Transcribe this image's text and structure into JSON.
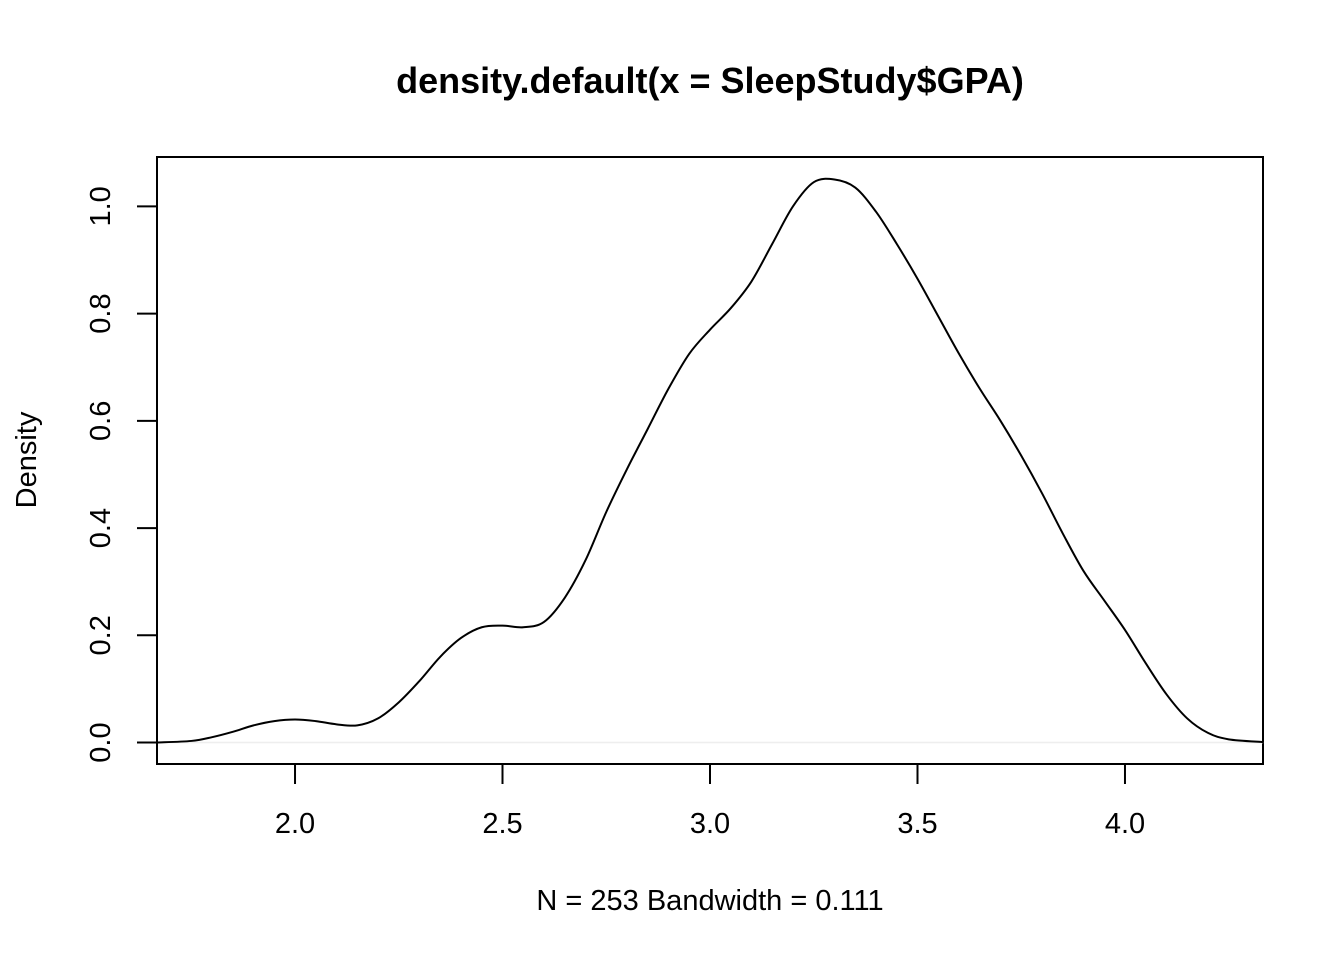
{
  "chart_data": {
    "type": "line",
    "title": "density.default(x = SleepStudy$GPA)",
    "xlabel": "N = 253   Bandwidth = 0.111",
    "ylabel": "Density",
    "xlim": [
      1.6674,
      4.3326
    ],
    "ylim": [
      -0.04,
      1.092
    ],
    "xticks": [
      2.0,
      2.5,
      3.0,
      3.5,
      4.0
    ],
    "xtick_labels": [
      "2.0",
      "2.5",
      "3.0",
      "3.5",
      "4.0"
    ],
    "yticks": [
      0.0,
      0.2,
      0.4,
      0.6,
      0.8,
      1.0
    ],
    "ytick_labels": [
      "0.0",
      "0.2",
      "0.4",
      "0.6",
      "0.8",
      "1.0"
    ],
    "grid": false,
    "series": [
      {
        "x": [
          1.667,
          1.75,
          1.8,
          1.85,
          1.9,
          1.95,
          2.0,
          2.05,
          2.1,
          2.15,
          2.2,
          2.25,
          2.3,
          2.35,
          2.4,
          2.45,
          2.5,
          2.55,
          2.6,
          2.65,
          2.7,
          2.75,
          2.8,
          2.85,
          2.9,
          2.95,
          3.0,
          3.05,
          3.1,
          3.15,
          3.2,
          3.25,
          3.3,
          3.35,
          3.4,
          3.45,
          3.5,
          3.55,
          3.6,
          3.65,
          3.7,
          3.75,
          3.8,
          3.85,
          3.9,
          3.95,
          4.0,
          4.05,
          4.1,
          4.15,
          4.2,
          4.25,
          4.333
        ],
        "y": [
          0.0,
          0.003,
          0.01,
          0.02,
          0.032,
          0.04,
          0.043,
          0.04,
          0.034,
          0.032,
          0.045,
          0.075,
          0.115,
          0.16,
          0.195,
          0.215,
          0.218,
          0.215,
          0.225,
          0.27,
          0.34,
          0.43,
          0.51,
          0.585,
          0.66,
          0.725,
          0.77,
          0.81,
          0.86,
          0.93,
          1.0,
          1.045,
          1.05,
          1.035,
          0.99,
          0.93,
          0.865,
          0.795,
          0.725,
          0.66,
          0.6,
          0.535,
          0.465,
          0.39,
          0.32,
          0.265,
          0.21,
          0.148,
          0.09,
          0.045,
          0.018,
          0.006,
          0.001
        ]
      }
    ]
  }
}
